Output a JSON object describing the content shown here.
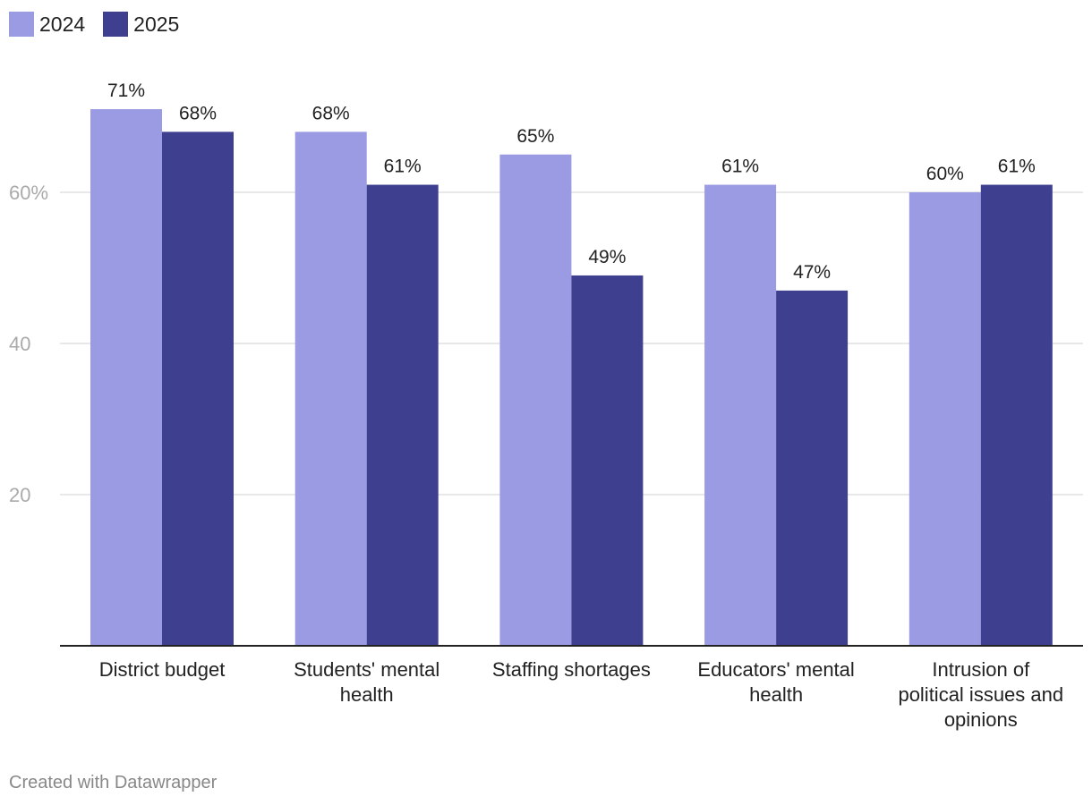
{
  "chart_data": {
    "type": "bar",
    "categories": [
      [
        "District budget"
      ],
      [
        "Students' mental",
        "health"
      ],
      [
        "Staffing shortages"
      ],
      [
        "Educators' mental",
        "health"
      ],
      [
        "Intrusion of",
        "political issues and",
        "opinions"
      ]
    ],
    "series": [
      {
        "name": "2024",
        "color": "#9a9be2",
        "values": [
          71,
          68,
          65,
          61,
          60
        ],
        "labels": [
          "71%",
          "68%",
          "65%",
          "61%",
          "60%"
        ]
      },
      {
        "name": "2025",
        "color": "#3f3f8f",
        "values": [
          68,
          61,
          49,
          47,
          61
        ],
        "labels": [
          "68%",
          "61%",
          "49%",
          "47%",
          "61%"
        ]
      }
    ],
    "y_ticks": [
      {
        "value": 20,
        "label": "20"
      },
      {
        "value": 40,
        "label": "40"
      },
      {
        "value": 60,
        "label": "60%"
      }
    ],
    "ylim": [
      0,
      80
    ],
    "grid": true
  },
  "legend": {
    "items": [
      {
        "label": "2024",
        "color": "#9a9be2"
      },
      {
        "label": "2025",
        "color": "#3f3f8f"
      }
    ]
  },
  "footer": {
    "credit": "Created with Datawrapper"
  }
}
